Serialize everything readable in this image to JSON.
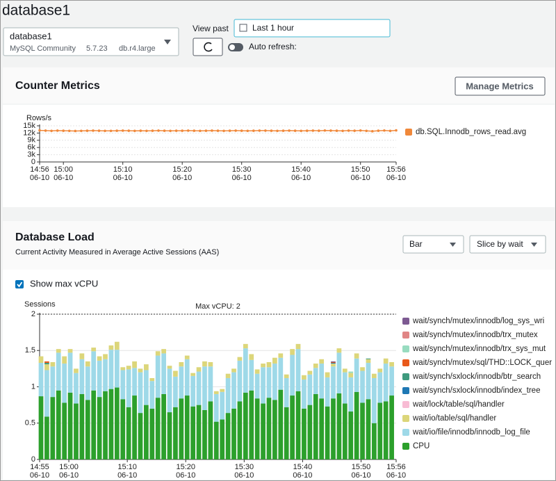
{
  "header": {
    "title": "database1"
  },
  "instance": {
    "name": "database1",
    "engine": "MySQL Community",
    "version": "5.7.23",
    "class": "db.r4.large"
  },
  "controls": {
    "view_past_label": "View past",
    "time_range": "Last 1 hour",
    "auto_refresh": "Auto refresh:"
  },
  "counter_metrics": {
    "title": "Counter Metrics",
    "button": "Manage Metrics"
  },
  "database_load": {
    "title": "Database Load",
    "subtitle": "Current Activity Measured in Average Active Sessions (AAS)",
    "chart_type_select": "Bar",
    "slice_select": "Slice by wait",
    "checkbox": "Show max vCPU"
  },
  "chart_data": [
    {
      "type": "line",
      "y_label": "Rows/s",
      "grid": true,
      "x": [
        "06-10 14:56",
        "06-10 14:57",
        "06-10 14:58",
        "06-10 14:59",
        "06-10 15:00",
        "06-10 15:01",
        "06-10 15:02",
        "06-10 15:03",
        "06-10 15:04",
        "06-10 15:05",
        "06-10 15:06",
        "06-10 15:07",
        "06-10 15:08",
        "06-10 15:09",
        "06-10 15:10",
        "06-10 15:11",
        "06-10 15:12",
        "06-10 15:13",
        "06-10 15:14",
        "06-10 15:15",
        "06-10 15:16",
        "06-10 15:17",
        "06-10 15:18",
        "06-10 15:19",
        "06-10 15:20",
        "06-10 15:21",
        "06-10 15:22",
        "06-10 15:23",
        "06-10 15:24",
        "06-10 15:25",
        "06-10 15:26",
        "06-10 15:27",
        "06-10 15:28",
        "06-10 15:29",
        "06-10 15:30",
        "06-10 15:31",
        "06-10 15:32",
        "06-10 15:33",
        "06-10 15:34",
        "06-10 15:35",
        "06-10 15:36",
        "06-10 15:37",
        "06-10 15:38",
        "06-10 15:39",
        "06-10 15:40",
        "06-10 15:41",
        "06-10 15:42",
        "06-10 15:43",
        "06-10 15:44",
        "06-10 15:45",
        "06-10 15:46",
        "06-10 15:47",
        "06-10 15:48",
        "06-10 15:49",
        "06-10 15:50",
        "06-10 15:51",
        "06-10 15:52",
        "06-10 15:53",
        "06-10 15:54",
        "06-10 15:55",
        "06-10 15:56"
      ],
      "series": [
        {
          "name": "db.SQL.Innodb_rows_read.avg",
          "color": "#f0883a",
          "values": [
            13100,
            13000,
            12900,
            13000,
            12950,
            12900,
            12850,
            12900,
            12950,
            13000,
            12950,
            12900,
            12900,
            12950,
            13000,
            12950,
            12900,
            12950,
            12900,
            12950,
            13000,
            12950,
            12900,
            12950,
            12950,
            13000,
            12950,
            12900,
            12950,
            13000,
            12950,
            12900,
            12950,
            13000,
            12950,
            12900,
            12950,
            13000,
            13000,
            12950,
            12900,
            12950,
            13000,
            12950,
            12900,
            12950,
            13000,
            12950,
            13050,
            13000,
            12950,
            12900,
            13000,
            12950,
            13050,
            12900,
            12750,
            12950,
            13050,
            12900,
            13100
          ]
        }
      ],
      "xlim": [
        "06-10 14:56",
        "06-10 15:56"
      ],
      "xticks": [
        {
          "value": "06-10 14:56",
          "label": [
            "14:56",
            "06-10"
          ]
        },
        {
          "value": "06-10 15:00",
          "label": [
            "15:00",
            "06-10"
          ]
        },
        {
          "value": "06-10 15:10",
          "label": [
            "15:10",
            "06-10"
          ]
        },
        {
          "value": "06-10 15:20",
          "label": [
            "15:20",
            "06-10"
          ]
        },
        {
          "value": "06-10 15:30",
          "label": [
            "15:30",
            "06-10"
          ]
        },
        {
          "value": "06-10 15:40",
          "label": [
            "15:40",
            "06-10"
          ]
        },
        {
          "value": "06-10 15:50",
          "label": [
            "15:50",
            "06-10"
          ]
        },
        {
          "value": "06-10 15:56",
          "label": [
            "15:56",
            "06-10"
          ]
        }
      ],
      "ylim": [
        0,
        15000
      ],
      "yticks": [
        0,
        {
          "value": 3000,
          "label": "3k"
        },
        {
          "value": 6000,
          "label": "6k"
        },
        {
          "value": 9000,
          "label": "9k"
        },
        {
          "value": 12000,
          "label": "12k"
        },
        {
          "value": 15000,
          "label": "15k"
        }
      ]
    },
    {
      "type": "stacked_bar",
      "y_label": "Sessions",
      "annotation": "Max vCPU: 2",
      "max_vcpu": 2,
      "grid": true,
      "x": [
        "06-10 14:55",
        "06-10 14:56",
        "06-10 14:57",
        "06-10 14:58",
        "06-10 14:59",
        "06-10 15:00",
        "06-10 15:01",
        "06-10 15:02",
        "06-10 15:03",
        "06-10 15:04",
        "06-10 15:05",
        "06-10 15:06",
        "06-10 15:07",
        "06-10 15:08",
        "06-10 15:09",
        "06-10 15:10",
        "06-10 15:11",
        "06-10 15:12",
        "06-10 15:13",
        "06-10 15:14",
        "06-10 15:15",
        "06-10 15:16",
        "06-10 15:17",
        "06-10 15:18",
        "06-10 15:19",
        "06-10 15:20",
        "06-10 15:21",
        "06-10 15:22",
        "06-10 15:23",
        "06-10 15:24",
        "06-10 15:25",
        "06-10 15:26",
        "06-10 15:27",
        "06-10 15:28",
        "06-10 15:29",
        "06-10 15:30",
        "06-10 15:31",
        "06-10 15:32",
        "06-10 15:33",
        "06-10 15:34",
        "06-10 15:35",
        "06-10 15:36",
        "06-10 15:37",
        "06-10 15:38",
        "06-10 15:39",
        "06-10 15:40",
        "06-10 15:41",
        "06-10 15:42",
        "06-10 15:43",
        "06-10 15:44",
        "06-10 15:45",
        "06-10 15:46",
        "06-10 15:47",
        "06-10 15:48",
        "06-10 15:49",
        "06-10 15:50",
        "06-10 15:51",
        "06-10 15:52",
        "06-10 15:53",
        "06-10 15:54",
        "06-10 15:55"
      ],
      "series": [
        {
          "name": "wait/synch/mutex/innodb/log_sys_wri",
          "color": "#7d5a92",
          "values": [
            0,
            0,
            0,
            0,
            0,
            0,
            0,
            0,
            0,
            0,
            0,
            0,
            0,
            0,
            0,
            0,
            0,
            0,
            0,
            0,
            0,
            0,
            0,
            0,
            0,
            0,
            0,
            0,
            0,
            0,
            0,
            0,
            0,
            0,
            0,
            0,
            0,
            0,
            0,
            0,
            0,
            0,
            0,
            0,
            0,
            0,
            0,
            0,
            0,
            0,
            0.01,
            0,
            0,
            0,
            0,
            0,
            0,
            0,
            0,
            0,
            0
          ]
        },
        {
          "name": "wait/synch/mutex/innodb/trx_mutex",
          "color": "#e08585",
          "values": [
            0,
            0,
            0,
            0,
            0,
            0,
            0,
            0,
            0,
            0,
            0,
            0,
            0,
            0,
            0,
            0,
            0,
            0,
            0,
            0,
            0,
            0,
            0,
            0,
            0,
            0,
            0,
            0,
            0,
            0,
            0,
            0,
            0,
            0,
            0,
            0,
            0,
            0,
            0,
            0,
            0,
            0,
            0,
            0,
            0,
            0,
            0,
            0,
            0,
            0,
            0,
            0,
            0,
            0,
            0,
            0,
            0,
            0,
            0,
            0,
            0
          ]
        },
        {
          "name": "wait/synch/mutex/innodb/trx_sys_mut",
          "color": "#98dcc0",
          "values": [
            0,
            0,
            0,
            0,
            0,
            0,
            0,
            0,
            0,
            0,
            0,
            0,
            0,
            0,
            0,
            0,
            0,
            0,
            0,
            0,
            0,
            0,
            0,
            0,
            0,
            0,
            0,
            0,
            0,
            0,
            0,
            0,
            0,
            0,
            0,
            0,
            0,
            0,
            0,
            0,
            0,
            0,
            0,
            0,
            0,
            0,
            0,
            0,
            0,
            0,
            0,
            0,
            0,
            0.02,
            0,
            0,
            0,
            0,
            0,
            0,
            0
          ]
        },
        {
          "name": "wait/synch/mutex/sql/THD::LOCK_quer",
          "color": "#e8591a",
          "values": [
            0,
            0.02,
            0,
            0,
            0,
            0,
            0,
            0,
            0,
            0,
            0,
            0,
            0,
            0,
            0,
            0,
            0,
            0,
            0,
            0,
            0,
            0,
            0,
            0,
            0,
            0,
            0,
            0,
            0,
            0,
            0,
            0,
            0,
            0,
            0,
            0,
            0,
            0,
            0,
            0,
            0,
            0,
            0,
            0,
            0,
            0,
            0,
            0,
            0,
            0,
            0.01,
            0,
            0,
            0,
            0,
            0,
            0,
            0,
            0,
            0,
            0
          ]
        },
        {
          "name": "wait/synch/sxlock/innodb/btr_search",
          "color": "#3e9a7e",
          "values": [
            0,
            0.02,
            0,
            0,
            0,
            0,
            0,
            0,
            0,
            0,
            0,
            0,
            0,
            0,
            0,
            0,
            0,
            0,
            0,
            0,
            0,
            0,
            0,
            0,
            0,
            0,
            0,
            0,
            0,
            0,
            0,
            0,
            0,
            0,
            0,
            0,
            0,
            0,
            0,
            0,
            0,
            0,
            0,
            0,
            0,
            0,
            0,
            0,
            0,
            0,
            0,
            0,
            0,
            0,
            0,
            0,
            0.01,
            0,
            0,
            0,
            0
          ]
        },
        {
          "name": "wait/synch/sxlock/innodb/index_tree",
          "color": "#1f78b4",
          "values": [
            0,
            0,
            0,
            0,
            0,
            0,
            0,
            0,
            0,
            0,
            0,
            0,
            0,
            0,
            0,
            0,
            0,
            0,
            0,
            0,
            0,
            0,
            0,
            0,
            0,
            0,
            0,
            0,
            0,
            0,
            0,
            0,
            0,
            0,
            0,
            0,
            0,
            0,
            0,
            0,
            0,
            0,
            0,
            0,
            0,
            0,
            0,
            0,
            0,
            0,
            0.01,
            0,
            0,
            0,
            0,
            0,
            0,
            0,
            0,
            0,
            0
          ]
        },
        {
          "name": "wait/lock/table/sql/handler",
          "color": "#f8bcd4",
          "values": [
            0,
            0,
            0,
            0,
            0,
            0,
            0,
            0,
            0,
            0,
            0,
            0,
            0,
            0,
            0,
            0,
            0,
            0,
            0,
            0,
            0,
            0,
            0,
            0,
            0,
            0,
            0,
            0,
            0,
            0,
            0,
            0,
            0,
            0,
            0,
            0,
            0,
            0,
            0,
            0,
            0,
            0,
            0,
            0,
            0,
            0,
            0,
            0,
            0,
            0,
            0,
            0,
            0,
            0,
            0,
            0,
            0,
            0,
            0,
            0,
            0
          ]
        },
        {
          "name": "wait/io/table/sql/handler",
          "color": "#dcd67a",
          "values": [
            0.09,
            0.08,
            0.06,
            0.05,
            0.1,
            0.05,
            0.06,
            0.08,
            0.07,
            0.05,
            0.06,
            0.07,
            0.06,
            0.11,
            0.04,
            0.05,
            0.09,
            0.05,
            0.08,
            0.04,
            0.06,
            0.06,
            0.04,
            0.08,
            0.06,
            0.05,
            0.04,
            0.06,
            0.07,
            0.06,
            0.04,
            0.04,
            0.06,
            0.05,
            0.05,
            0.06,
            0.08,
            0.06,
            0.05,
            0.07,
            0.08,
            0.06,
            0.05,
            0.08,
            0.07,
            0.06,
            0.05,
            0.06,
            0.06,
            0.07,
            0.04,
            0.06,
            0.05,
            0.06,
            0.07,
            0.05,
            0.05,
            0.06,
            0.05,
            0.07,
            0.06
          ]
        },
        {
          "name": "wait/io/file/innodb/innodb_log_file",
          "color": "#9ed9e8",
          "values": [
            0.46,
            0.64,
            0.42,
            0.52,
            0.54,
            0.55,
            0.42,
            0.48,
            0.46,
            0.54,
            0.5,
            0.44,
            0.54,
            0.52,
            0.4,
            0.52,
            0.38,
            0.56,
            0.48,
            0.38,
            0.58,
            0.56,
            0.6,
            0.42,
            0.44,
            0.5,
            0.42,
            0.46,
            0.6,
            0.48,
            0.38,
            0.38,
            0.48,
            0.5,
            0.56,
            0.61,
            0.42,
            0.34,
            0.5,
            0.42,
            0.5,
            0.44,
            0.4,
            0.56,
            0.58,
            0.4,
            0.42,
            0.36,
            0.48,
            0.4,
            0.44,
            0.56,
            0.43,
            0.47,
            0.46,
            0.44,
            0.5,
            0.62,
            0.42,
            0.52,
            0.4
          ]
        },
        {
          "name": "CPU",
          "color": "#2ca02c",
          "values": [
            0.87,
            0.59,
            0.86,
            0.95,
            0.78,
            0.92,
            0.77,
            0.9,
            0.82,
            0.95,
            0.86,
            0.94,
            0.97,
            0.99,
            0.83,
            0.72,
            0.88,
            0.64,
            0.75,
            0.7,
            0.85,
            0.9,
            0.65,
            0.72,
            0.84,
            0.88,
            0.73,
            0.75,
            0.68,
            0.8,
            0.52,
            0.55,
            0.64,
            0.7,
            0.8,
            0.92,
            0.95,
            0.84,
            0.77,
            0.85,
            0.82,
            0.96,
            0.72,
            0.88,
            0.94,
            0.7,
            0.75,
            0.9,
            0.84,
            0.73,
            0.84,
            0.91,
            0.77,
            0.66,
            0.93,
            0.78,
            0.83,
            0.5,
            0.78,
            0.8,
            0.88
          ]
        }
      ],
      "xlim": [
        "06-10 14:55",
        "06-10 15:56"
      ],
      "xticks": [
        {
          "value": "06-10 14:55",
          "label": [
            "14:55",
            "06-10"
          ]
        },
        {
          "value": "06-10 15:00",
          "label": [
            "15:00",
            "06-10"
          ]
        },
        {
          "value": "06-10 15:10",
          "label": [
            "15:10",
            "06-10"
          ]
        },
        {
          "value": "06-10 15:20",
          "label": [
            "15:20",
            "06-10"
          ]
        },
        {
          "value": "06-10 15:30",
          "label": [
            "15:30",
            "06-10"
          ]
        },
        {
          "value": "06-10 15:40",
          "label": [
            "15:40",
            "06-10"
          ]
        },
        {
          "value": "06-10 15:50",
          "label": [
            "15:50",
            "06-10"
          ]
        },
        {
          "value": "06-10 15:56",
          "label": [
            "15:56",
            "06-10"
          ]
        }
      ],
      "ylim": [
        0,
        2
      ],
      "yticks": [
        0,
        0.5,
        1,
        1.5,
        2
      ]
    }
  ]
}
